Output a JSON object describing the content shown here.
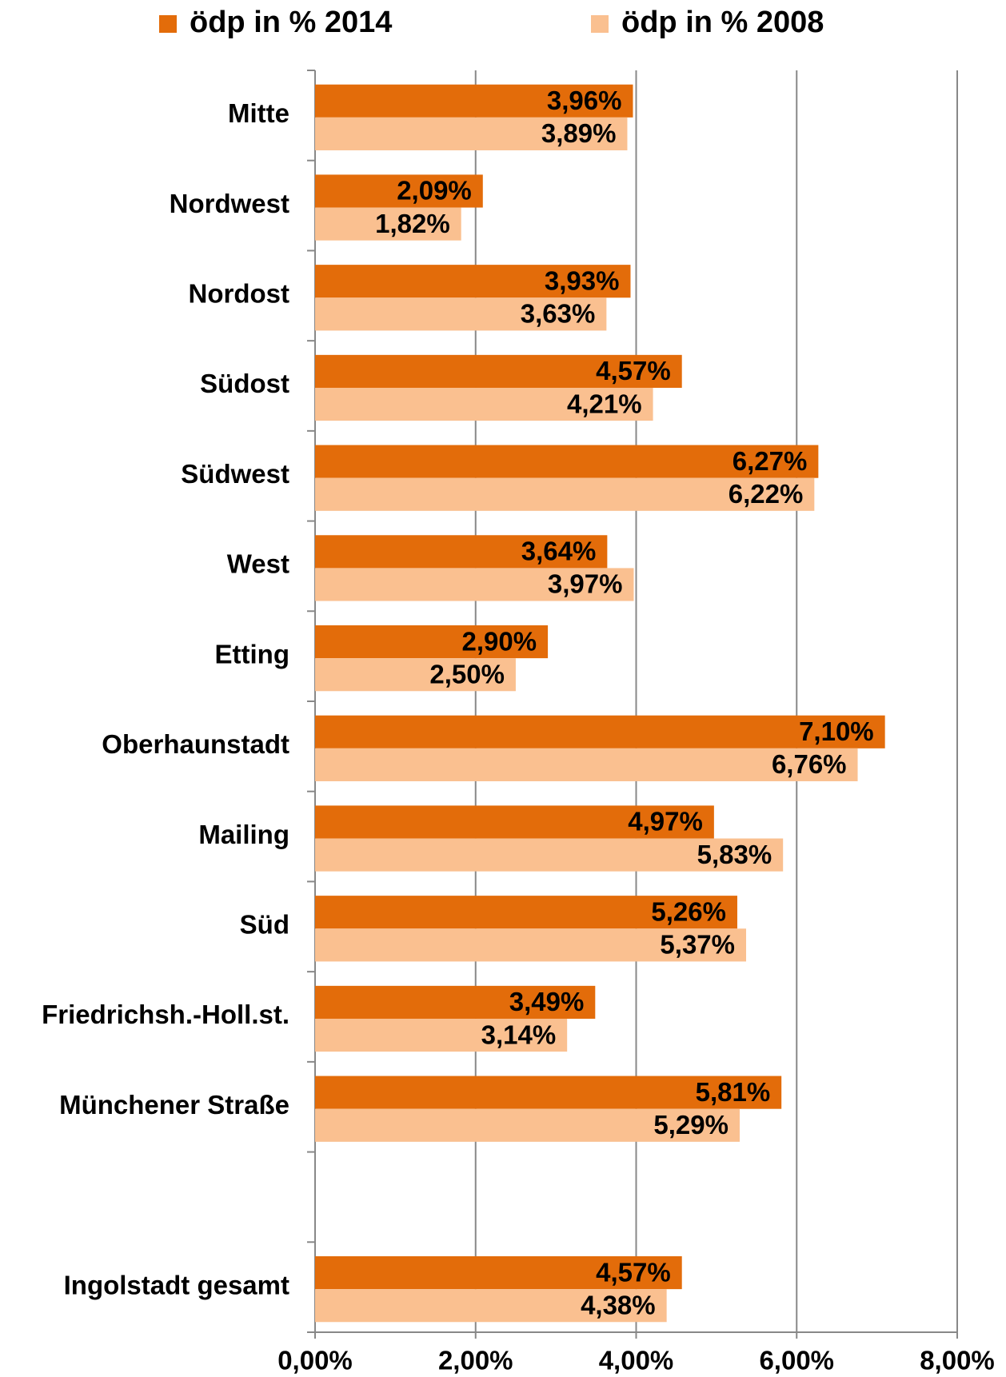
{
  "chart_data": {
    "type": "bar",
    "orientation": "horizontal",
    "categories": [
      "Mitte",
      "Nordwest",
      "Nordost",
      "Südost",
      "Südwest",
      "West",
      "Etting",
      "Oberhaunstadt",
      "Mailing",
      "Süd",
      "Friedrichsh.-Holl.st.",
      "Münchener Straße",
      null,
      "Ingolstadt gesamt"
    ],
    "series": [
      {
        "name": "ödp in % 2014",
        "color": "#e36c0a",
        "values": [
          3.96,
          2.09,
          3.93,
          4.57,
          6.27,
          3.64,
          2.9,
          7.1,
          4.97,
          5.26,
          3.49,
          5.81,
          null,
          4.57
        ],
        "value_labels": [
          "3,96%",
          "2,09%",
          "3,93%",
          "4,57%",
          "6,27%",
          "3,64%",
          "2,90%",
          "7,10%",
          "4,97%",
          "5,26%",
          "3,49%",
          "5,81%",
          null,
          "4,57%"
        ]
      },
      {
        "name": "ödp in % 2008",
        "color": "#fac090",
        "values": [
          3.89,
          1.82,
          3.63,
          4.21,
          6.22,
          3.97,
          2.5,
          6.76,
          5.83,
          5.37,
          3.14,
          5.29,
          null,
          4.38
        ],
        "value_labels": [
          "3,89%",
          "1,82%",
          "3,63%",
          "4,21%",
          "6,22%",
          "3,97%",
          "2,50%",
          "6,76%",
          "5,83%",
          "5,37%",
          "3,14%",
          "5,29%",
          null,
          "4,38%"
        ]
      }
    ],
    "xlim": [
      0,
      8
    ],
    "xticks": [
      {
        "value": 0,
        "label": "0,00%"
      },
      {
        "value": 2,
        "label": "2,00%"
      },
      {
        "value": 4,
        "label": "4,00%"
      },
      {
        "value": 6,
        "label": "6,00%"
      },
      {
        "value": 8,
        "label": "8,00%"
      }
    ],
    "grid": true,
    "legend": "top"
  }
}
